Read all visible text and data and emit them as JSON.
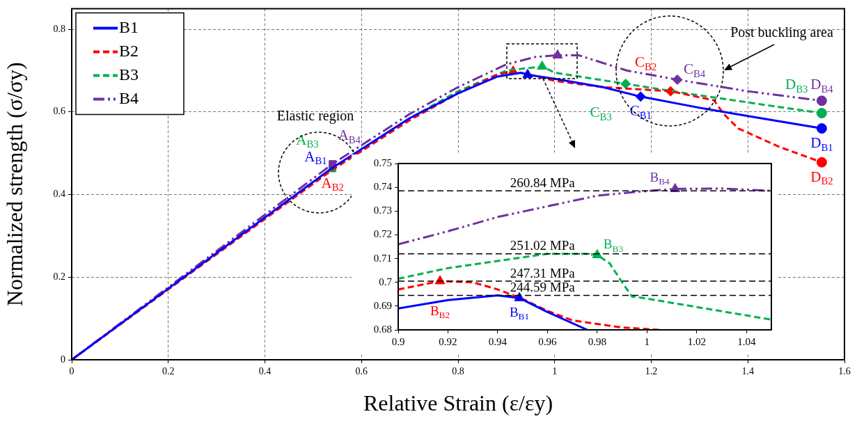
{
  "chart_data": [
    {
      "type": "line",
      "xlabel": "Relative Strain (ε/εy)",
      "ylabel": "Normalized strength (σ/σy)",
      "xlim": [
        0,
        1.6
      ],
      "xticks": [
        0,
        0.2,
        0.4,
        0.6,
        0.8,
        1,
        1.2,
        1.4,
        1.6
      ],
      "ylim": [
        0,
        0.85
      ],
      "yticks": [
        0,
        0.2,
        0.4,
        0.6,
        0.8
      ],
      "grid": true,
      "legend": "top left",
      "series": [
        {
          "name": "B1",
          "color": "#0000ff",
          "line_style": "solid",
          "x": [
            0,
            0.54,
            0.6,
            0.7,
            0.8,
            0.88,
            0.93,
            0.944,
            1.0,
            1.1,
            1.178,
            1.3,
            1.4,
            1.553
          ],
          "values": [
            0,
            0.465,
            0.51,
            0.585,
            0.645,
            0.685,
            0.695,
            0.69,
            0.68,
            0.66,
            0.637,
            0.61,
            0.59,
            0.56
          ]
        },
        {
          "name": "B2",
          "color": "#ff0000",
          "line_style": "dashed",
          "x": [
            0,
            0.54,
            0.7,
            0.8,
            0.88,
            0.914,
            0.95,
            1.0,
            1.1,
            1.24,
            1.33,
            1.35,
            1.38,
            1.466,
            1.553
          ],
          "values": [
            0,
            0.46,
            0.58,
            0.645,
            0.69,
            0.698,
            0.69,
            0.675,
            0.66,
            0.65,
            0.628,
            0.595,
            0.56,
            0.515,
            0.478
          ]
        },
        {
          "name": "B3",
          "color": "#00b050",
          "line_style": "dashed",
          "x": [
            0,
            0.54,
            0.7,
            0.8,
            0.9,
            0.974,
            1.0,
            1.147,
            1.3,
            1.553
          ],
          "values": [
            0,
            0.463,
            0.585,
            0.65,
            0.7,
            0.71,
            0.695,
            0.668,
            0.64,
            0.597
          ]
        },
        {
          "name": "B4",
          "color": "#7030a0",
          "line_style": "dashdot",
          "x": [
            0,
            0.54,
            0.7,
            0.8,
            0.9,
            0.96,
            1.006,
            1.05,
            1.15,
            1.254,
            1.4,
            1.553
          ],
          "values": [
            0,
            0.474,
            0.595,
            0.66,
            0.715,
            0.733,
            0.737,
            0.737,
            0.7,
            0.678,
            0.65,
            0.627
          ]
        },
        {
          "type": "scatter",
          "marker": "square",
          "x": [
            null,
            null,
            0.54,
            0.54
          ],
          "values": [
            null,
            null,
            0.463,
            0.474
          ],
          "colors": [
            "#0000ff",
            "#ff0000",
            "#00b050",
            "#7030a0"
          ],
          "value_labels": [
            "A$_{B1}$",
            "A$_{B2}$",
            "A$_{B3}$",
            "A$_{B4}$"
          ]
        },
        {
          "type": "scatter",
          "marker": "triangle",
          "x": [
            0.944,
            0.914,
            0.974,
            1.006
          ],
          "values": [
            0.69,
            0.698,
            0.71,
            0.737
          ],
          "colors": [
            "#0000ff",
            "#ff0000",
            "#00b050",
            "#7030a0"
          ]
        },
        {
          "type": "scatter",
          "marker": "diamond",
          "x": [
            1.178,
            1.24,
            1.147,
            1.254
          ],
          "values": [
            0.637,
            0.65,
            0.668,
            0.678
          ],
          "colors": [
            "#0000ff",
            "#ff0000",
            "#00b050",
            "#7030a0"
          ],
          "value_labels": [
            "C$_{B1}$",
            "C$_{B2}$",
            "C$_{B3}$",
            "C$_{B4}$"
          ]
        },
        {
          "type": "scatter",
          "marker": "circle",
          "x": [
            1.553,
            1.553,
            1.553,
            1.553
          ],
          "values": [
            0.56,
            0.478,
            0.597,
            0.627
          ],
          "colors": [
            "#0000ff",
            "#ff0000",
            "#00b050",
            "#7030a0"
          ],
          "value_labels": [
            "D$_{B1}$",
            "D$_{B2}$",
            "D$_{B3}$",
            "D$_{B4}$"
          ]
        }
      ],
      "annotations": [
        "Elastic region",
        "Post buckling area"
      ]
    },
    {
      "type": "line",
      "xlim": [
        0.9,
        1.05
      ],
      "xticks": [
        0.9,
        0.92,
        0.94,
        0.96,
        0.98,
        1,
        1.02,
        1.04
      ],
      "ylim": [
        0.68,
        0.75
      ],
      "yticks": [
        0.68,
        0.69,
        0.7,
        0.71,
        0.72,
        0.73,
        0.74,
        0.75
      ],
      "series": [
        {
          "color": "#0000ff",
          "line_style": "solid",
          "x": [
            0.9,
            0.92,
            0.94,
            0.9487,
            0.96,
            0.976
          ],
          "values": [
            0.689,
            0.6925,
            0.6945,
            0.6934,
            0.6875,
            0.68
          ]
        },
        {
          "color": "#ff0000",
          "line_style": "dashed",
          "x": [
            0.9,
            0.9168,
            0.93,
            0.94,
            0.95,
            0.96,
            0.97,
            0.99,
            1.005
          ],
          "values": [
            0.697,
            0.7005,
            0.7,
            0.697,
            0.693,
            0.688,
            0.684,
            0.681,
            0.68
          ]
        },
        {
          "color": "#00b050",
          "line_style": "dashed",
          "x": [
            0.9,
            0.92,
            0.94,
            0.96,
            0.975,
            0.98,
            0.985,
            0.99,
            0.994,
            0.998,
            1.05
          ],
          "values": [
            0.7015,
            0.706,
            0.709,
            0.712,
            0.712,
            0.7115,
            0.708,
            0.7,
            0.694,
            0.6935,
            0.6843
          ]
        },
        {
          "color": "#7030a0",
          "line_style": "dashdot",
          "x": [
            0.9,
            0.92,
            0.94,
            0.96,
            0.98,
            0.995,
            1.0113,
            1.03,
            1.05
          ],
          "values": [
            0.716,
            0.7215,
            0.7275,
            0.732,
            0.7365,
            0.738,
            0.7393,
            0.7395,
            0.7385
          ]
        },
        {
          "type": "scatter",
          "marker": "triangle",
          "x": [
            0.9487,
            0.9168,
            0.98,
            1.0113
          ],
          "values": [
            0.6934,
            0.7005,
            0.7115,
            0.7393
          ],
          "colors": [
            "#0000ff",
            "#ff0000",
            "#00b050",
            "#7030a0"
          ],
          "value_labels": [
            "B$_{B1}$",
            "B$_{B2}$",
            "B$_{B3}$",
            "B$_{B4}$"
          ]
        }
      ],
      "ref_lines": [
        {
          "axis": "y",
          "value": 0.7385,
          "label": "260.84 MPa",
          "color": "#000000",
          "line_style": "dashed"
        },
        {
          "axis": "y",
          "value": 0.712,
          "label": "251.02 MPa",
          "color": "#000000",
          "line_style": "dashed"
        },
        {
          "axis": "y",
          "value": 0.7005,
          "label": "247.31 MPa",
          "color": "#000000",
          "line_style": "dashed"
        },
        {
          "axis": "y",
          "value": 0.6945,
          "label": "244.59 MPa",
          "color": "#000000",
          "line_style": "dashed"
        }
      ]
    }
  ]
}
